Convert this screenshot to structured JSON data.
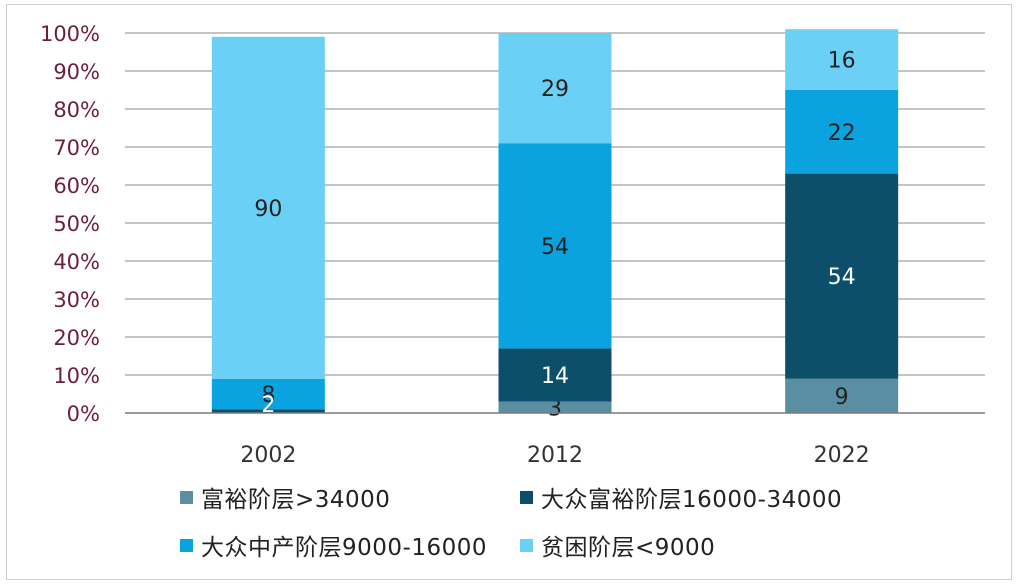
{
  "chart_data": {
    "type": "bar",
    "stacked": true,
    "percent": true,
    "categories": [
      "2002",
      "2012",
      "2022"
    ],
    "ylim": [
      0,
      100
    ],
    "yticks": [
      "0%",
      "10%",
      "20%",
      "30%",
      "40%",
      "50%",
      "60%",
      "70%",
      "80%",
      "90%",
      "100%"
    ],
    "grid": true,
    "legend_position": "bottom",
    "series": [
      {
        "name": "富裕阶层>34000",
        "color": "#5a8fa3",
        "values": [
          0,
          3,
          9
        ],
        "labels": [
          "",
          "3",
          "9"
        ],
        "label_color": "#222222"
      },
      {
        "name": "大众富裕阶层16000-34000",
        "color": "#0d4f6b",
        "values": [
          1,
          14,
          54
        ],
        "labels": [
          "",
          "14",
          "54"
        ],
        "label_color": "#ffffff"
      },
      {
        "name": "大众中产阶层9000-16000",
        "color": "#0aa3e0",
        "values": [
          8,
          54,
          22
        ],
        "labels": [
          "8",
          "54",
          "22"
        ],
        "label_color": "#222222"
      },
      {
        "name": "贫困阶层<9000",
        "color": "#6ad0f6",
        "values": [
          90,
          29,
          16
        ],
        "labels": [
          "90",
          "29",
          "16"
        ],
        "label_color": "#222222"
      }
    ],
    "extra_labels": [
      {
        "category": "2002",
        "text": "2"
      }
    ]
  }
}
